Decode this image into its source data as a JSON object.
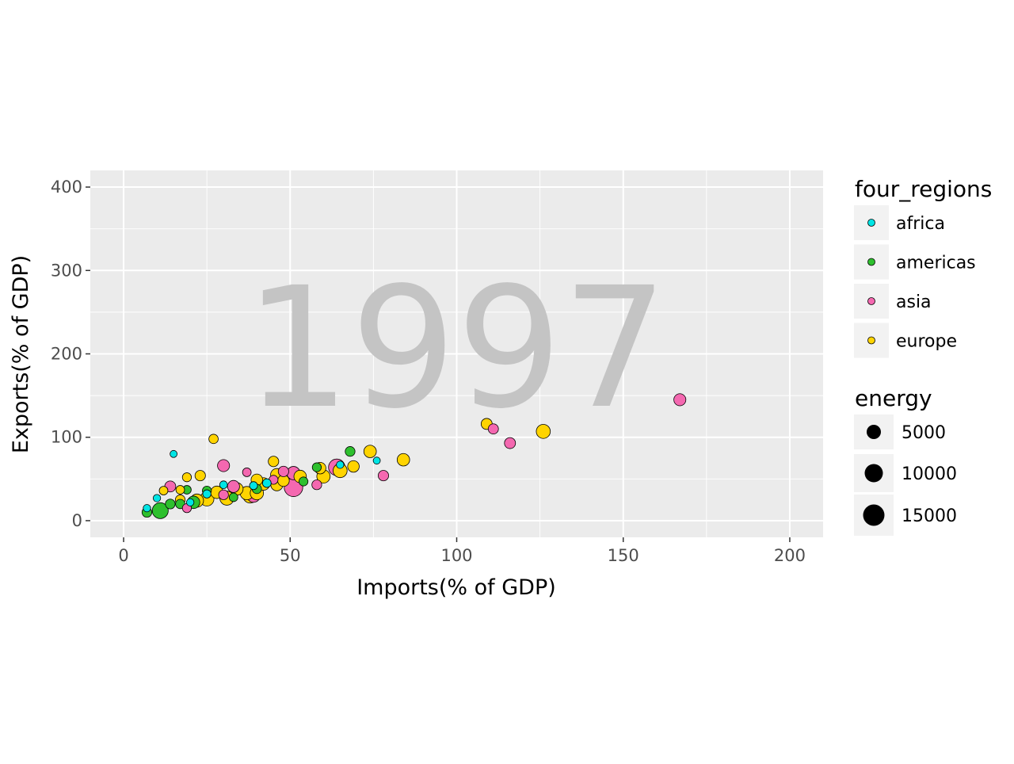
{
  "chart_data": {
    "type": "scatter",
    "watermark": "1997",
    "xlabel": "Imports(% of GDP)",
    "ylabel": "Exports(% of GDP)",
    "xlim": [
      -10,
      210
    ],
    "ylim": [
      -20,
      420
    ],
    "x_ticks": [
      0,
      50,
      100,
      150,
      200
    ],
    "y_ticks": [
      0,
      100,
      200,
      300,
      400
    ],
    "grid": true,
    "colors": {
      "panel_bg": "#ebebeb",
      "grid": "#ffffff",
      "africa": "#00e5e5",
      "americas": "#2ec02e",
      "asia": "#f468b0",
      "europe": "#ffd400",
      "watermark": "#c4c4c4"
    },
    "legend_color": {
      "title": "four_regions",
      "entries": [
        "africa",
        "americas",
        "asia",
        "europe"
      ]
    },
    "legend_size": {
      "title": "energy",
      "entries": [
        5000,
        10000,
        15000
      ]
    },
    "series": [
      {
        "name": "africa",
        "points": [
          [
            7,
            15,
            300
          ],
          [
            10,
            27,
            300
          ],
          [
            15,
            80,
            200
          ],
          [
            25,
            32,
            600
          ],
          [
            30,
            43,
            400
          ],
          [
            39,
            42,
            500
          ],
          [
            43,
            45,
            800
          ],
          [
            65,
            67,
            300
          ],
          [
            76,
            72,
            200
          ],
          [
            20,
            22,
            300
          ]
        ]
      },
      {
        "name": "americas",
        "points": [
          [
            7,
            10,
            1500
          ],
          [
            11,
            12,
            9000
          ],
          [
            14,
            20,
            1500
          ],
          [
            17,
            20,
            1200
          ],
          [
            19,
            37,
            800
          ],
          [
            21,
            22,
            4000
          ],
          [
            25,
            36,
            1000
          ],
          [
            54,
            47,
            1000
          ],
          [
            58,
            64,
            1000
          ],
          [
            68,
            83,
            1500
          ],
          [
            40,
            38,
            1200
          ],
          [
            33,
            28,
            800
          ]
        ]
      },
      {
        "name": "asia",
        "points": [
          [
            14,
            41,
            2500
          ],
          [
            19,
            15,
            1000
          ],
          [
            30,
            66,
            3500
          ],
          [
            30,
            31,
            1500
          ],
          [
            33,
            41,
            3500
          ],
          [
            37,
            58,
            800
          ],
          [
            39,
            30,
            5000
          ],
          [
            45,
            49,
            1000
          ],
          [
            48,
            59,
            2000
          ],
          [
            51,
            40,
            14000
          ],
          [
            51,
            57,
            5000
          ],
          [
            58,
            43,
            1500
          ],
          [
            64,
            64,
            10000
          ],
          [
            78,
            54,
            2000
          ],
          [
            111,
            110,
            1800
          ],
          [
            116,
            93,
            2500
          ],
          [
            167,
            145,
            3500
          ]
        ]
      },
      {
        "name": "europe",
        "points": [
          [
            12,
            36,
            800
          ],
          [
            17,
            37,
            800
          ],
          [
            17,
            25,
            1500
          ],
          [
            19,
            52,
            1000
          ],
          [
            22,
            24,
            5000
          ],
          [
            23,
            54,
            2000
          ],
          [
            25,
            26,
            6000
          ],
          [
            27,
            98,
            1200
          ],
          [
            28,
            34,
            4000
          ],
          [
            31,
            27,
            6000
          ],
          [
            34,
            38,
            4000
          ],
          [
            37,
            33,
            5000
          ],
          [
            38,
            30,
            7000
          ],
          [
            40,
            33,
            5000
          ],
          [
            40,
            49,
            3000
          ],
          [
            42,
            44,
            4000
          ],
          [
            45,
            71,
            2000
          ],
          [
            46,
            55,
            4000
          ],
          [
            46,
            43,
            3500
          ],
          [
            48,
            48,
            3000
          ],
          [
            53,
            53,
            4000
          ],
          [
            59,
            63,
            3000
          ],
          [
            60,
            53,
            5000
          ],
          [
            65,
            60,
            6000
          ],
          [
            69,
            65,
            3000
          ],
          [
            74,
            83,
            4000
          ],
          [
            84,
            73,
            4000
          ],
          [
            109,
            116,
            2500
          ],
          [
            126,
            107,
            6000
          ]
        ]
      }
    ]
  }
}
